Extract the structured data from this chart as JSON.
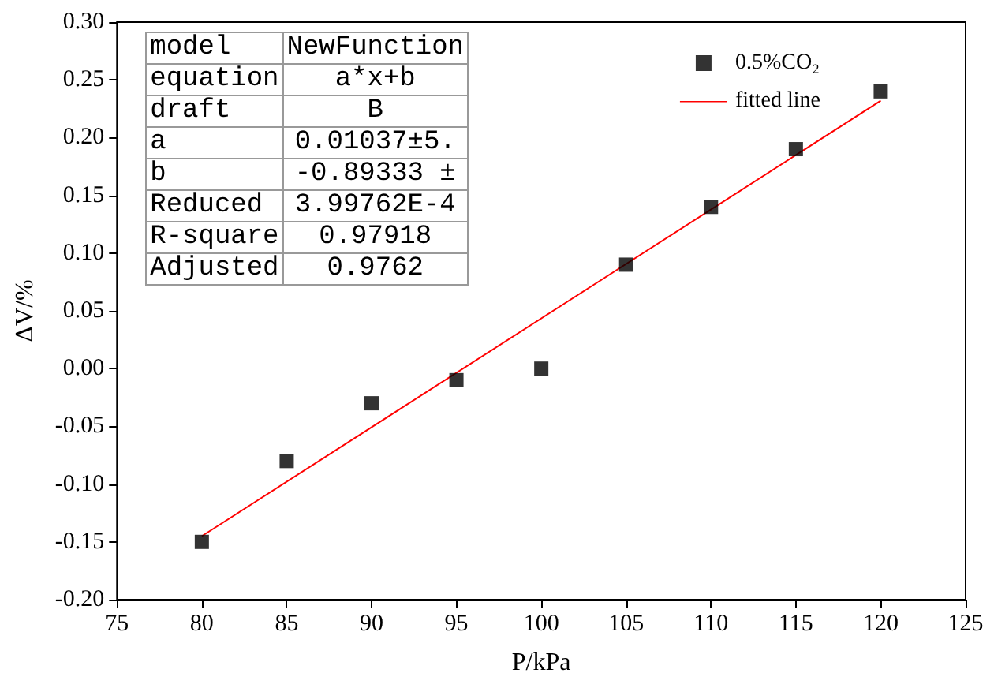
{
  "chart_data": {
    "type": "scatter",
    "xlabel": "P/kPa",
    "ylabel": "ΔV/%",
    "xlim": [
      75,
      125
    ],
    "xticks": [
      75,
      80,
      85,
      90,
      95,
      100,
      105,
      110,
      115,
      120,
      125
    ],
    "ylim": [
      -0.2,
      0.3
    ],
    "yticks": [
      {
        "value": -0.2,
        "label": "-0.20"
      },
      {
        "value": -0.15,
        "label": "-0.15"
      },
      {
        "value": -0.1,
        "label": "-0.10"
      },
      {
        "value": -0.05,
        "label": "-0.05"
      },
      {
        "value": 0,
        "label": "0.00"
      },
      {
        "value": 0.05,
        "label": "0.05"
      },
      {
        "value": 0.1,
        "label": "0.10"
      },
      {
        "value": 0.15,
        "label": "0.15"
      },
      {
        "value": 0.2,
        "label": "0.20"
      },
      {
        "value": 0.25,
        "label": "0.25"
      },
      {
        "value": 0.3,
        "label": "0.30"
      }
    ],
    "x": [
      80,
      85,
      90,
      95,
      100,
      105,
      110,
      115,
      120
    ],
    "series": [
      {
        "name": "0.5%CO₂",
        "color": "#000000",
        "marker": "square",
        "values": [
          -0.15,
          -0.08,
          -0.03,
          -0.01,
          0.0,
          0.09,
          0.14,
          0.19,
          0.24
        ]
      },
      {
        "name": "fitted line",
        "type": "line",
        "color": "#ff0000",
        "marker": "none",
        "x": [
          80,
          120
        ],
        "values": [
          -0.145,
          0.232
        ]
      }
    ],
    "legend": "top right",
    "grid": false,
    "annotations": [
      "model",
      "NewFunction",
      "equation",
      "a*x+b",
      "draft",
      "B",
      "a",
      "0.01037±5.",
      "b",
      "-0.89333 ±",
      "Reduced",
      "3.99762E-4",
      "R-square",
      "0.97918",
      "Adjusted",
      "0.9762"
    ]
  }
}
